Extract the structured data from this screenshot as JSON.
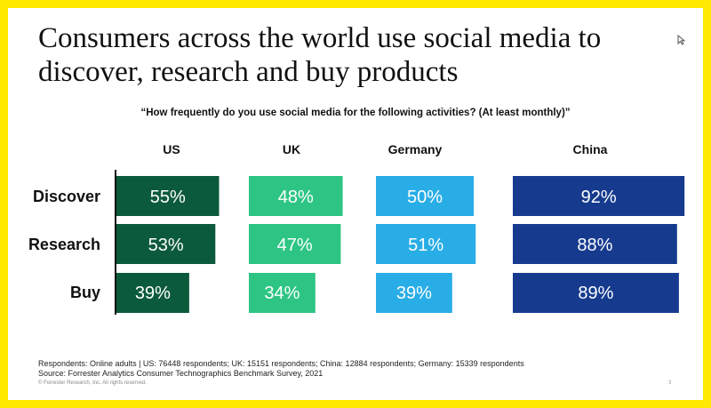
{
  "slide": {
    "title_line1": "Consumers across the world use social media to",
    "title_line2": "discover, research and buy products",
    "question": "“How frequently do you use social media for the following activities? (At least monthly)”",
    "footnote1": "Respondents: Online adults | US: 76448 respondents; UK: 15151 respondents; China: 12884 respondents; Germany: 15339 respondents",
    "footnote2": "Source: Forrester Analytics Consumer Technographics Benchmark Survey, 2021",
    "copyright": "© Forrester Research, Inc. All rights reserved.",
    "page_number": "3",
    "cursor_icon": "arrow-cursor-icon",
    "border_color": "#ffea00"
  },
  "chart_data": {
    "type": "bar",
    "orientation": "horizontal-small-multiples",
    "title": "“How frequently do you use social media for the following activities? (At least monthly)”",
    "categories": [
      "Discover",
      "Research",
      "Buy"
    ],
    "series": [
      {
        "name": "US",
        "values": [
          55,
          53,
          39
        ],
        "labels": [
          "55%",
          "53%",
          "39%"
        ],
        "color": "#0c5a3c"
      },
      {
        "name": "UK",
        "values": [
          48,
          47,
          34
        ],
        "labels": [
          "48%",
          "47%",
          "34%"
        ],
        "color": "#2ec584"
      },
      {
        "name": "Germany",
        "values": [
          50,
          51,
          39
        ],
        "labels": [
          "50%",
          "51%",
          "39%"
        ],
        "color": "#28ade6"
      },
      {
        "name": "China",
        "values": [
          92,
          88,
          89
        ],
        "labels": [
          "92%",
          "88%",
          "89%"
        ],
        "color": "#163b8e"
      }
    ],
    "units": "%",
    "grid": false,
    "legend": "none"
  }
}
